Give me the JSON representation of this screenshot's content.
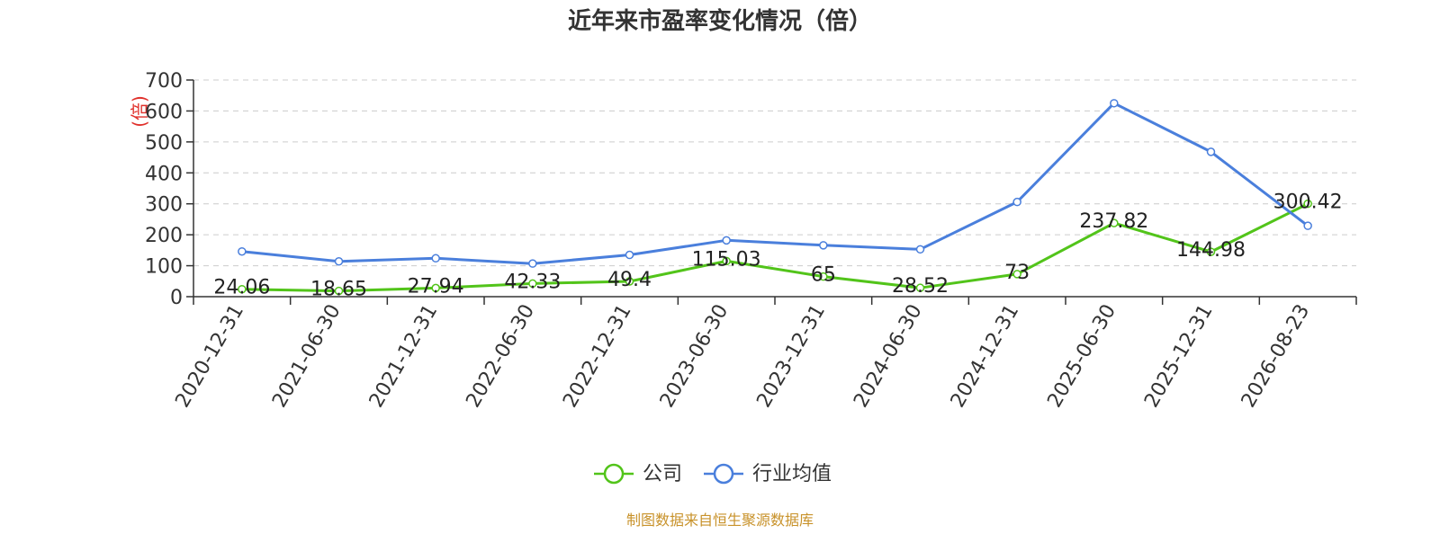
{
  "chart_data": {
    "type": "line",
    "title": "近年来市盈率变化情况（倍）",
    "ylabel": "(倍)",
    "xlabel": "",
    "ylim": [
      0,
      700
    ],
    "yticks": [
      0,
      100,
      200,
      300,
      400,
      500,
      600,
      700
    ],
    "categories": [
      "2020-12-31",
      "2021-06-30",
      "2021-12-31",
      "2022-06-30",
      "2022-12-31",
      "2023-06-30",
      "2023-12-31",
      "2024-06-30",
      "2024-12-31",
      "2025-06-30",
      "2025-12-31",
      "2026-08-23"
    ],
    "series": [
      {
        "name": "公司",
        "color": "#52c41a",
        "values": [
          24.06,
          18.65,
          27.94,
          42.33,
          49.4,
          115.03,
          65,
          28.52,
          73,
          237.82,
          144.98,
          300.42
        ],
        "labels": [
          "24.06",
          "18.65",
          "27.94",
          "42.33",
          "49.4",
          "115.03",
          "65",
          "28.52",
          "73",
          "237.82",
          "144.98",
          "300.42"
        ]
      },
      {
        "name": "行业均值",
        "color": "#4a7fdc",
        "values": [
          146,
          114,
          124,
          107,
          135,
          182,
          166,
          153,
          306,
          625,
          468,
          229
        ]
      }
    ],
    "grid": true,
    "legend_position": "bottom-center"
  },
  "footer": {
    "source": "制图数据来自恒生聚源数据库",
    "source_color": "#c8922a"
  }
}
